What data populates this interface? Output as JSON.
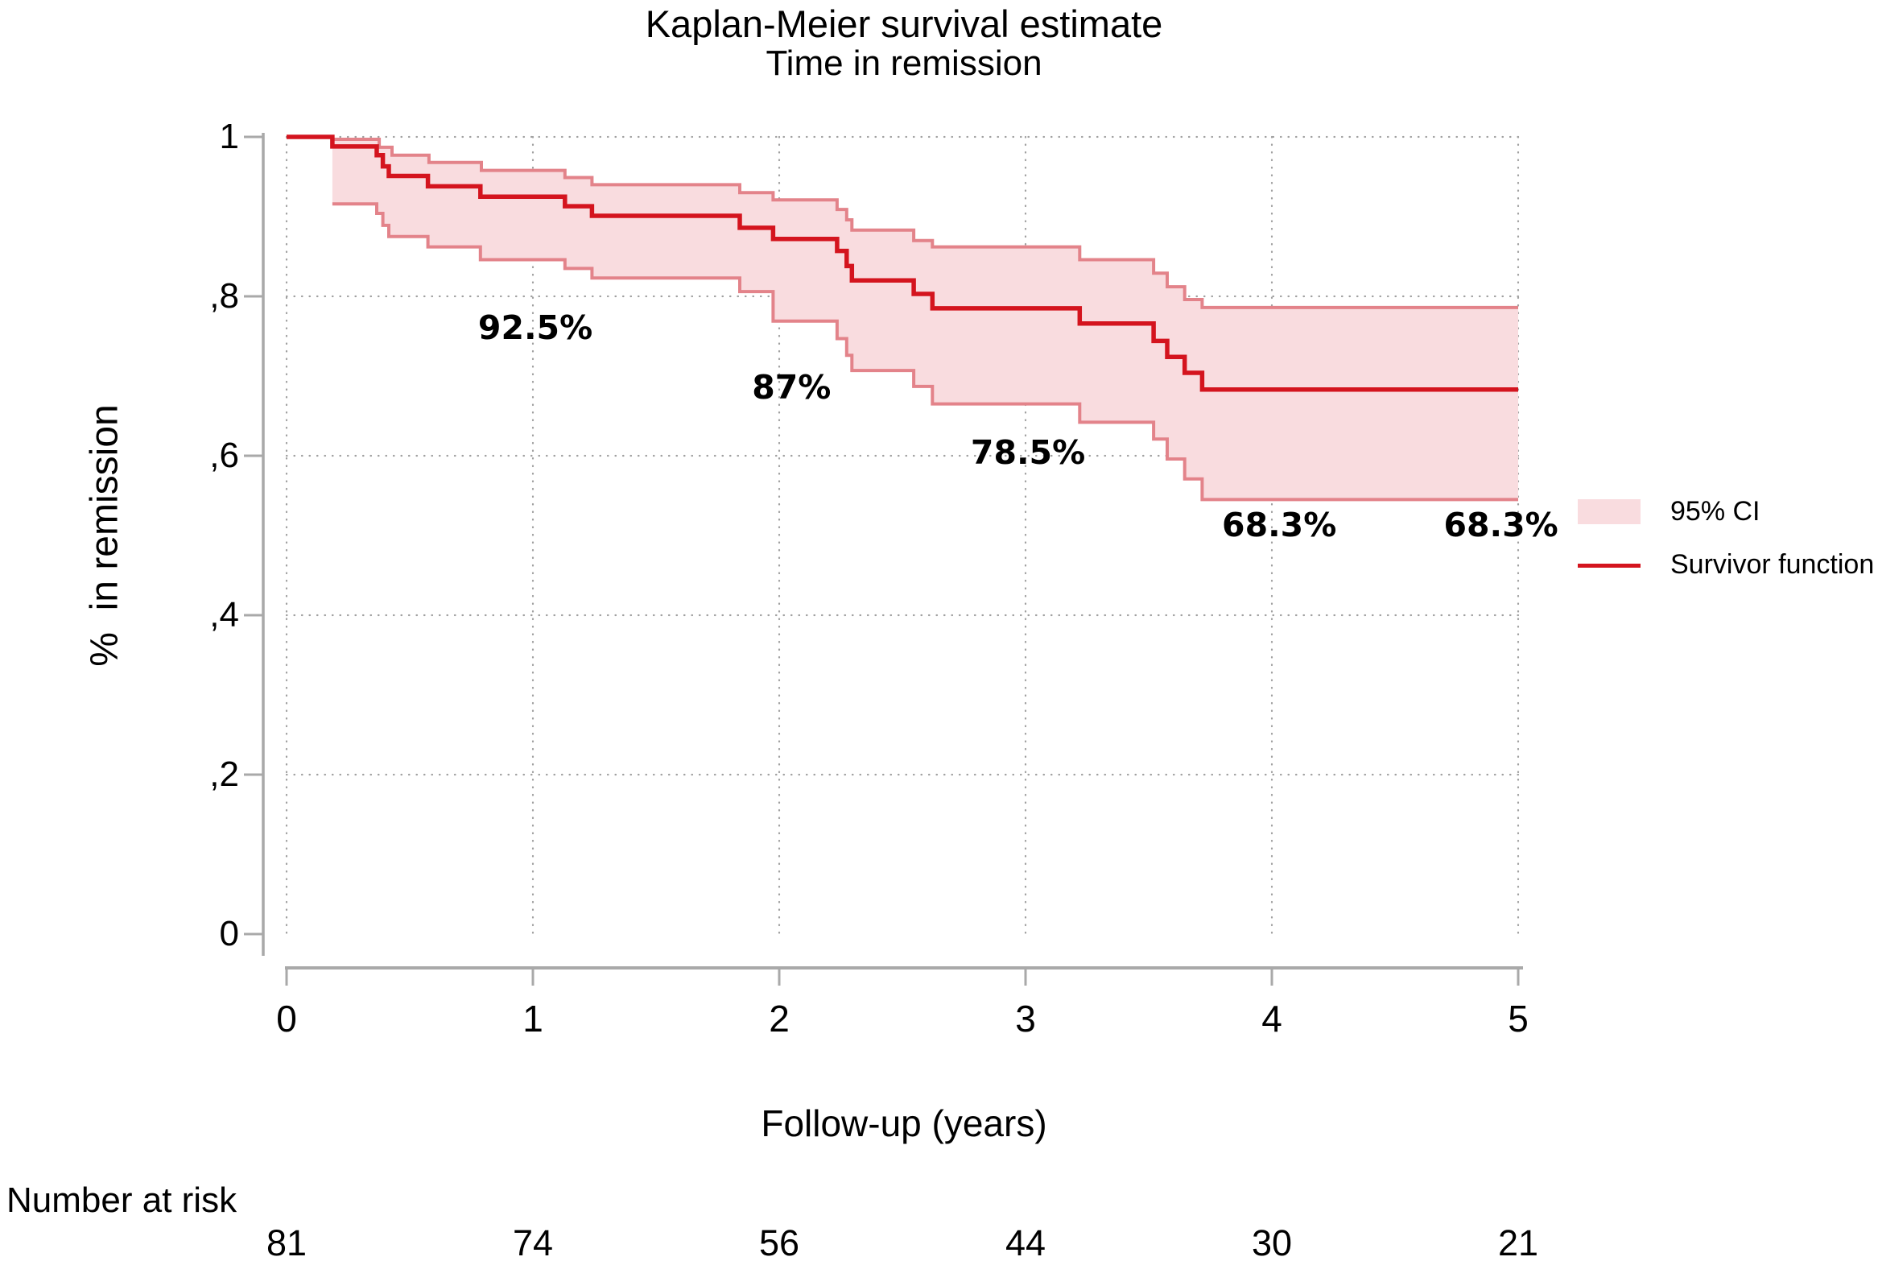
{
  "title": "Kaplan-Meier survival estimate",
  "subtitle": "Time in remission",
  "ylabel": "%  in remission",
  "xlabel": "Follow-up (years)",
  "risk_section_label": "Number at risk",
  "legend": {
    "position": "right-middle",
    "ci_label": "95% CI",
    "line_label": "Survivor function"
  },
  "colors": {
    "survivor_line": "#d4141e",
    "ci_border": "#e3838a",
    "ci_fill": "#f9dcdf",
    "axis": "#a9a9a9",
    "grid": "#a0a0a0",
    "text": "#000000"
  },
  "chart_data": {
    "type": "line",
    "subtype": "kaplan-meier-step",
    "title": "Kaplan-Meier survival estimate",
    "subtitle": "Time in remission",
    "xlabel": "Follow-up (years)",
    "ylabel": "%  in remission",
    "xlim": [
      0,
      5
    ],
    "ylim": [
      0,
      1
    ],
    "grid": "dotted",
    "legend_position": "right-middle",
    "x_ticks": [
      {
        "label": "0",
        "value": 0
      },
      {
        "label": "1",
        "value": 1
      },
      {
        "label": "2",
        "value": 2
      },
      {
        "label": "3",
        "value": 3
      },
      {
        "label": "4",
        "value": 4
      },
      {
        "label": "5",
        "value": 5
      }
    ],
    "y_ticks": [
      {
        "label": "1",
        "value": 1.0,
        "grid": true
      },
      {
        "label": ",8",
        "value": 0.8,
        "grid": true
      },
      {
        "label": ",6",
        "value": 0.6,
        "grid": true
      },
      {
        "label": ",4",
        "value": 0.4,
        "grid": true
      },
      {
        "label": ",2",
        "value": 0.2,
        "grid": true
      },
      {
        "label": "0",
        "value": 0.0,
        "grid": false
      }
    ],
    "series": [
      {
        "name": "Survivor function",
        "role": "estimate",
        "steps": [
          [
            0,
            1.0
          ],
          [
            0.186,
            0.988
          ],
          [
            0.366,
            0.977
          ],
          [
            0.391,
            0.963
          ],
          [
            0.415,
            0.951
          ],
          [
            0.574,
            0.938
          ],
          [
            0.787,
            0.925
          ],
          [
            1.13,
            0.913
          ],
          [
            1.24,
            0.901
          ],
          [
            1.84,
            0.886
          ],
          [
            1.975,
            0.872
          ],
          [
            2.235,
            0.857
          ],
          [
            2.274,
            0.838
          ],
          [
            2.295,
            0.82
          ],
          [
            2.546,
            0.803
          ],
          [
            2.622,
            0.785
          ],
          [
            3.22,
            0.766
          ],
          [
            3.52,
            0.744
          ],
          [
            3.575,
            0.724
          ],
          [
            3.646,
            0.704
          ],
          [
            3.717,
            0.683
          ],
          [
            5,
            0.683
          ]
        ]
      },
      {
        "name": "95% CI upper",
        "role": "ci-upper",
        "steps": [
          [
            0.186,
            0.997
          ],
          [
            0.376,
            0.987
          ],
          [
            0.428,
            0.977
          ],
          [
            0.578,
            0.968
          ],
          [
            0.791,
            0.958
          ],
          [
            1.13,
            0.949
          ],
          [
            1.24,
            0.94
          ],
          [
            1.84,
            0.93
          ],
          [
            1.975,
            0.921
          ],
          [
            2.235,
            0.909
          ],
          [
            2.274,
            0.896
          ],
          [
            2.295,
            0.883
          ],
          [
            2.546,
            0.87
          ],
          [
            2.622,
            0.862
          ],
          [
            3.22,
            0.846
          ],
          [
            3.52,
            0.829
          ],
          [
            3.575,
            0.812
          ],
          [
            3.646,
            0.796
          ],
          [
            3.717,
            0.786
          ],
          [
            5,
            0.786
          ]
        ]
      },
      {
        "name": "95% CI lower",
        "role": "ci-lower",
        "steps": [
          [
            0.186,
            0.916
          ],
          [
            0.366,
            0.904
          ],
          [
            0.391,
            0.889
          ],
          [
            0.415,
            0.875
          ],
          [
            0.574,
            0.862
          ],
          [
            0.787,
            0.846
          ],
          [
            1.13,
            0.835
          ],
          [
            1.24,
            0.823
          ],
          [
            1.84,
            0.806
          ],
          [
            1.975,
            0.769
          ],
          [
            2.235,
            0.747
          ],
          [
            2.274,
            0.726
          ],
          [
            2.295,
            0.707
          ],
          [
            2.546,
            0.687
          ],
          [
            2.622,
            0.665
          ],
          [
            3.22,
            0.642
          ],
          [
            3.52,
            0.621
          ],
          [
            3.575,
            0.596
          ],
          [
            3.646,
            0.571
          ],
          [
            3.717,
            0.545
          ],
          [
            5,
            0.545
          ]
        ]
      }
    ],
    "annotations": [
      {
        "text": "92.5%",
        "t": 1.01,
        "s": 0.761
      },
      {
        "text": "87%",
        "t": 2.05,
        "s": 0.686
      },
      {
        "text": "78.5%",
        "t": 3.01,
        "s": 0.604
      },
      {
        "text": "68.3%",
        "t": 4.03,
        "s": 0.513
      },
      {
        "text": "68.3%",
        "t": 4.93,
        "s": 0.513
      }
    ],
    "number_at_risk": [
      {
        "time": 0,
        "n": "81"
      },
      {
        "time": 1,
        "n": "74"
      },
      {
        "time": 2,
        "n": "56"
      },
      {
        "time": 3,
        "n": "44"
      },
      {
        "time": 4,
        "n": "30"
      },
      {
        "time": 5,
        "n": "21"
      }
    ]
  }
}
